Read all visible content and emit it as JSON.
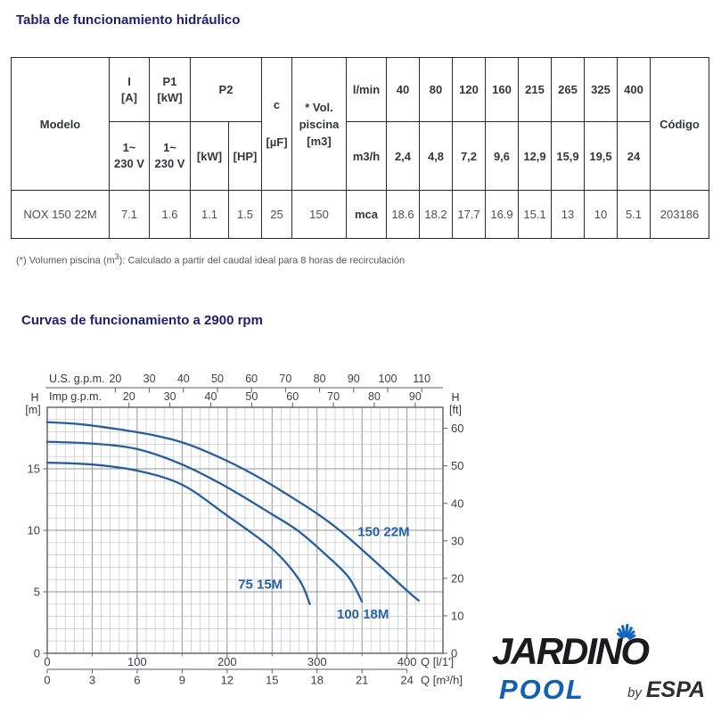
{
  "table_section": {
    "title": "Tabla de funcionamiento hidráulico",
    "footnote_pre": "(*) Volumen piscina (m",
    "footnote_sup": "3",
    "footnote_post": "): Calculado a partir del caudal ideal para 8 horas de recirculación"
  },
  "table": {
    "headers": {
      "modelo": "Modelo",
      "i_top": "I",
      "i_unit": "[A]",
      "p1_top": "P1",
      "p1_unit": "[kW]",
      "p2": "P2",
      "p2_kw": "[kW]",
      "p2_hp": "[HP]",
      "c": "c",
      "c_unit": "[µF]",
      "vol_line1": "* Vol.",
      "vol_line2": "piscina",
      "vol_line3": "[m3]",
      "volt1": "1~",
      "volt2": "230 V",
      "lmin": "l/min",
      "m3h": "m3/h",
      "mca": "mca",
      "codigo": "Código"
    },
    "flow_lmin": [
      "40",
      "80",
      "120",
      "160",
      "215",
      "265",
      "325",
      "400"
    ],
    "flow_m3h": [
      "2,4",
      "4,8",
      "7,2",
      "9,6",
      "12,9",
      "15,9",
      "19,5",
      "24"
    ],
    "row": {
      "modelo": "NOX 150 22M",
      "i": "7.1",
      "p1": "1.6",
      "p2_kw": "1.1",
      "p2_hp": "1.5",
      "c": "25",
      "vol": "150",
      "mca_values": [
        "18.6",
        "18.2",
        "17.7",
        "16.9",
        "15.1",
        "13",
        "10",
        "5.1"
      ],
      "codigo": "203186"
    }
  },
  "chart_section": {
    "title": "Curvas de funcionamiento a 2900 rpm"
  },
  "chart_data": {
    "type": "line",
    "title": "Curvas de funcionamiento a 2900 rpm",
    "x_axis_top1": {
      "label": "U.S. g.p.m.",
      "ticks": [
        20,
        30,
        40,
        50,
        60,
        70,
        80,
        90,
        100,
        110
      ]
    },
    "x_axis_top2": {
      "label": "Imp g.p.m.",
      "ticks": [
        20,
        30,
        40,
        50,
        60,
        70,
        80,
        90
      ]
    },
    "y_axis_left": {
      "label1": "H",
      "label2": "[m]",
      "ticks": [
        0,
        5,
        10,
        15
      ]
    },
    "y_axis_right": {
      "label1": "H",
      "label2": "[ft]",
      "ticks": [
        0,
        10,
        20,
        30,
        40,
        50,
        60
      ]
    },
    "x_axis_bottom1": {
      "label": "Q [l/1']",
      "ticks": [
        0,
        100,
        200,
        300,
        400
      ]
    },
    "x_axis_bottom2": {
      "label": "Q [m³/h]",
      "ticks": [
        0,
        3,
        6,
        9,
        12,
        15,
        18,
        21,
        24
      ]
    },
    "q_range_lmin": [
      0,
      440
    ],
    "h_range_m": [
      0,
      20
    ],
    "grid": true,
    "series": [
      {
        "name": "150 22M",
        "points": [
          [
            0,
            18.8
          ],
          [
            40,
            18.6
          ],
          [
            80,
            18.2
          ],
          [
            120,
            17.7
          ],
          [
            160,
            16.9
          ],
          [
            215,
            15.1
          ],
          [
            265,
            13
          ],
          [
            325,
            10
          ],
          [
            400,
            5.1
          ],
          [
            413,
            4.3
          ]
        ],
        "label_at": [
          374,
          9.9
        ]
      },
      {
        "name": "100 18M",
        "points": [
          [
            0,
            17.2
          ],
          [
            50,
            17.05
          ],
          [
            100,
            16.6
          ],
          [
            150,
            15.35
          ],
          [
            200,
            13.5
          ],
          [
            250,
            11.3
          ],
          [
            280,
            9.9
          ],
          [
            310,
            8.0
          ],
          [
            335,
            6.2
          ],
          [
            350,
            4.2
          ]
        ],
        "label_at": [
          351,
          3.2
        ]
      },
      {
        "name": "75 15M",
        "points": [
          [
            0,
            15.5
          ],
          [
            50,
            15.35
          ],
          [
            100,
            14.85
          ],
          [
            150,
            13.7
          ],
          [
            200,
            11.2
          ],
          [
            250,
            8.5
          ],
          [
            280,
            6.0
          ],
          [
            292,
            4.0
          ]
        ],
        "label_at": [
          237,
          5.6
        ]
      }
    ],
    "curve_color": "#265f9c",
    "label_color": "#2a62a8",
    "grid_minor": "#c2c6cc",
    "grid_major": "#90959d",
    "axis_color": "#5a5e65",
    "tick_text_color": "#3b3f46"
  },
  "logo": {
    "brand": "JARDINO",
    "sub": "POOL",
    "by": "by",
    "espa": "ESPA",
    "brand_color": "#1b1b1d",
    "pool_color": "#1160b4",
    "spray_color": "#1565c0"
  },
  "colors": {
    "title": "#211d70",
    "table_border": "#2b2b2b"
  }
}
